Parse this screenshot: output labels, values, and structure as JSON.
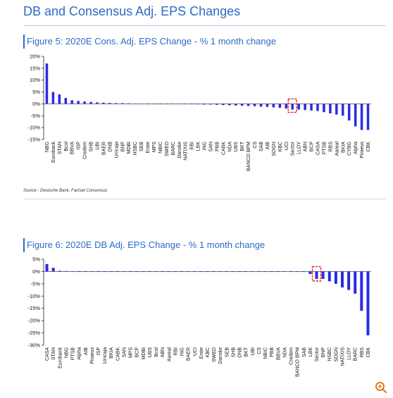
{
  "page_title": "DB and Consensus Adj. EPS Changes",
  "figure5": {
    "title": "Figure 5: 2020E Cons. Adj. EPS Change - % 1 month change"
  },
  "figure6": {
    "title": "Figure 6: 2020E DB Adj. EPS Change - % 1 month change"
  },
  "source": "Source : Deutsche Bank, Factset Consensus",
  "colors": {
    "bar": "#2a2ae6",
    "highlight": "#e31b1b",
    "title": "#2b6cc4"
  },
  "icons": {
    "zoom": "zoom-in-icon"
  },
  "chart_data": [
    {
      "type": "bar",
      "title": "Figure 5: 2020E Cons. Adj. EPS Change - % 1 month change",
      "ylim": [
        -15,
        20
      ],
      "yticks": [
        20,
        15,
        10,
        5,
        0,
        -5,
        -10,
        -15
      ],
      "ytick_labels": [
        "20%",
        "15%",
        "10%",
        "5%",
        "0%",
        "-5%",
        "-10%",
        "-15%"
      ],
      "highlight_category": "Sector",
      "categories": [
        "NBG",
        "Eurobank",
        "STAN",
        "Bcol",
        "BBVA",
        "ISP",
        "Credem",
        "SHB",
        "UBI",
        "BAER",
        "DNB",
        "Unicaja",
        "BNP",
        "MDBI",
        "HSBC",
        "SEB",
        "Erste",
        "MPS",
        "NBIC",
        "SWED",
        "BARC",
        "Danske",
        "NATIXIS",
        "RBI",
        "LBK",
        "ING",
        "SAN",
        "PBB",
        "CABK",
        "NDA",
        "UBS",
        "BKT",
        "BANCO BPM",
        "CS",
        "SAB",
        "AIB",
        "SOGN",
        "KBC",
        "UCI",
        "Sector",
        "LLOY",
        "ABN",
        "BCP",
        "CASA",
        "PTSB",
        "RBS",
        "Aareal",
        "BKIA",
        "CYBG",
        "Alpha",
        "Piraeus",
        "CBK"
      ],
      "values": [
        17,
        5,
        4,
        2.5,
        1.5,
        1.2,
        1,
        0.8,
        0.6,
        0.5,
        0.4,
        0.3,
        0.3,
        0.2,
        0.1,
        0.1,
        0,
        0,
        0,
        0,
        0,
        0,
        0,
        -0.1,
        -0.2,
        -0.3,
        -0.3,
        -0.4,
        -0.5,
        -0.6,
        -0.7,
        -0.8,
        -0.9,
        -1,
        -1.2,
        -1.3,
        -1.5,
        -1.7,
        -2,
        -2.4,
        -2.4,
        -2.6,
        -2.8,
        -3,
        -3.5,
        -4,
        -4.5,
        -5,
        -7,
        -9.5,
        -11,
        -11
      ]
    },
    {
      "type": "bar",
      "title": "Figure 6: 2020E DB Adj. EPS Change - % 1 month change",
      "ylim": [
        -30,
        5
      ],
      "yticks": [
        5,
        0,
        -5,
        -10,
        -15,
        -20,
        -25,
        -30
      ],
      "ytick_labels": [
        "5%",
        "0%",
        "-5%",
        "-10%",
        "-15%",
        "-20%",
        "-25%",
        "-30%"
      ],
      "highlight_category": "Sector",
      "categories": [
        "CASA",
        "STAN",
        "Eurobank",
        "NBG",
        "PTSB",
        "Alpha",
        "AIB",
        "Piraeus",
        "ISP",
        "Unicaja",
        "BKIA",
        "CABK",
        "SAN",
        "MPS",
        "BCP",
        "MDBI",
        "UBS",
        "Bcol",
        "ABN",
        "Aareal",
        "RBI",
        "ING",
        "BAER",
        "UCI",
        "Erste",
        "KBC",
        "SWED",
        "Danske",
        "SEB",
        "SHB",
        "DNB",
        "BKT",
        "UBI",
        "CS",
        "NBIC",
        "PBB",
        "BBVA",
        "NDA",
        "Credem",
        "BANCO BPM",
        "SAB",
        "LBK",
        "Sector",
        "BNP",
        "HSBC",
        "SOGN",
        "NATIXIS",
        "LLOY",
        "BARC",
        "RBS",
        "CBK"
      ],
      "values": [
        3,
        1.5,
        0.3,
        0.2,
        0.1,
        0,
        0,
        0,
        0,
        0,
        0,
        0,
        0,
        0,
        0,
        0,
        0,
        0,
        0,
        0,
        0,
        0,
        0,
        0,
        0,
        0,
        0,
        0,
        0,
        0,
        0,
        0,
        0,
        0,
        0,
        0,
        0,
        0,
        0,
        0,
        0,
        -1,
        -3,
        -3,
        -4,
        -5,
        -6.5,
        -7.5,
        -9,
        -16,
        -26
      ]
    }
  ]
}
